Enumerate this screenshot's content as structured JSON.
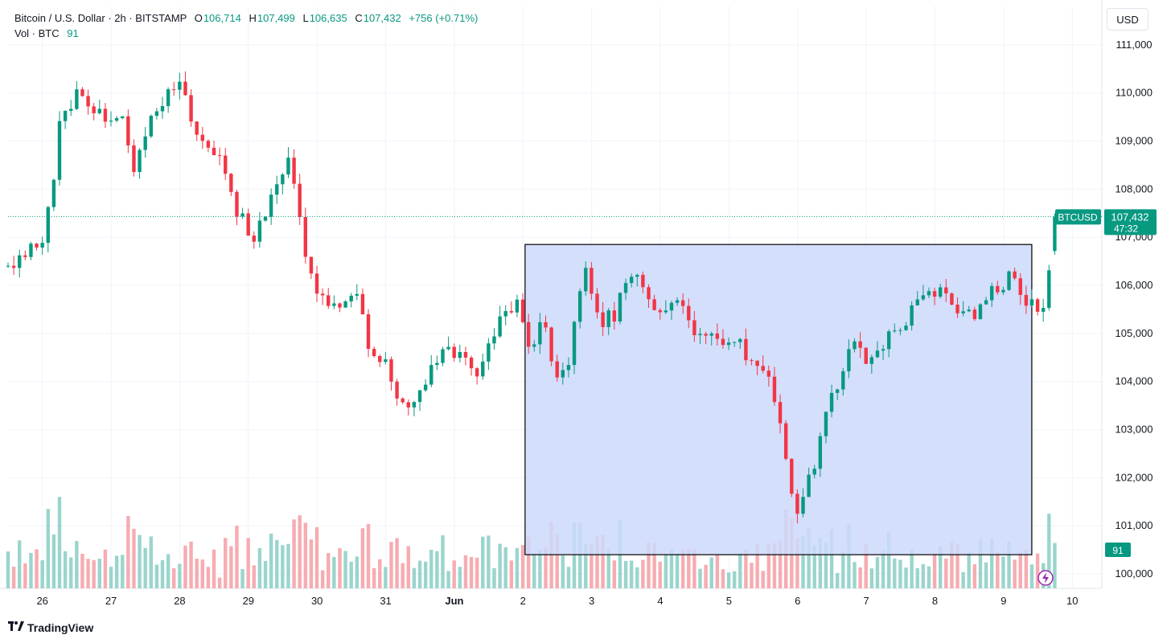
{
  "legend": {
    "symbol": "Bitcoin / U.S. Dollar · 2h · BITSTAMP",
    "open_label": "O",
    "open_value": "106,714",
    "high_label": "H",
    "high_value": "107,499",
    "low_label": "L",
    "low_value": "106,635",
    "close_label": "C",
    "close_value": "107,432",
    "change": "+756 (+0.71%)",
    "vol_label": "Vol · BTC",
    "vol_value": "91"
  },
  "currency_button": "USD",
  "branding": {
    "name": "TradingView",
    "icon": "tradingview-logo-icon"
  },
  "price_tag": {
    "symbol": "BTCUSD",
    "price": "107,432",
    "countdown": "47:32"
  },
  "volume_tag": "91",
  "alert_icon": "lightning-icon",
  "colors": {
    "up": "#089981",
    "down": "#f23645",
    "up_volume": "#8fd0c8",
    "down_volume": "#f5a3a9",
    "rectangle_fill": "#cdd9fb",
    "rectangle_border": "#000000",
    "grid": "#f0f3fa"
  },
  "chart_data": {
    "type": "candlestick",
    "title": "Bitcoin / U.S. Dollar · 2h · BITSTAMP",
    "ylim": [
      99700,
      111800
    ],
    "yticks": [
      "111,000",
      "110,000",
      "109,000",
      "108,000",
      "107,000",
      "106,000",
      "105,000",
      "104,000",
      "103,000",
      "102,000",
      "101,000",
      "100,000"
    ],
    "ytick_values": [
      111000,
      110000,
      109000,
      108000,
      107000,
      106000,
      105000,
      104000,
      103000,
      102000,
      101000,
      100000
    ],
    "xticks": [
      {
        "label": "26",
        "t": 0.5
      },
      {
        "label": "27",
        "t": 1.5
      },
      {
        "label": "28",
        "t": 2.5
      },
      {
        "label": "29",
        "t": 3.5
      },
      {
        "label": "30",
        "t": 4.5
      },
      {
        "label": "31",
        "t": 5.5
      },
      {
        "label": "Jun",
        "t": 6.5
      },
      {
        "label": "2",
        "t": 7.5
      },
      {
        "label": "3",
        "t": 8.5
      },
      {
        "label": "4",
        "t": 9.5
      },
      {
        "label": "5",
        "t": 10.5
      },
      {
        "label": "6",
        "t": 11.5
      },
      {
        "label": "7",
        "t": 12.5
      },
      {
        "label": "8",
        "t": 13.5
      },
      {
        "label": "9",
        "t": 14.5
      },
      {
        "label": "10",
        "t": 15.5
      }
    ],
    "xlim": [
      0.0,
      15.93
    ],
    "bar_spacing_days": 0.0833,
    "anchors": [
      {
        "t": 0.0,
        "p": 106400
      },
      {
        "t": 0.25,
        "p": 106600
      },
      {
        "t": 0.55,
        "p": 107100
      },
      {
        "t": 0.75,
        "p": 109300
      },
      {
        "t": 1.0,
        "p": 110000
      },
      {
        "t": 1.2,
        "p": 109800
      },
      {
        "t": 1.45,
        "p": 109500
      },
      {
        "t": 1.65,
        "p": 109700
      },
      {
        "t": 1.85,
        "p": 108300
      },
      {
        "t": 2.1,
        "p": 109600
      },
      {
        "t": 2.5,
        "p": 110100
      },
      {
        "t": 2.8,
        "p": 109000
      },
      {
        "t": 3.1,
        "p": 108800
      },
      {
        "t": 3.35,
        "p": 107500
      },
      {
        "t": 3.6,
        "p": 106900
      },
      {
        "t": 3.8,
        "p": 107800
      },
      {
        "t": 4.1,
        "p": 108700
      },
      {
        "t": 4.35,
        "p": 106300
      },
      {
        "t": 4.55,
        "p": 105800
      },
      {
        "t": 4.75,
        "p": 105600
      },
      {
        "t": 5.05,
        "p": 106000
      },
      {
        "t": 5.25,
        "p": 104800
      },
      {
        "t": 5.5,
        "p": 104300
      },
      {
        "t": 5.75,
        "p": 103500
      },
      {
        "t": 5.95,
        "p": 103600
      },
      {
        "t": 6.15,
        "p": 104300
      },
      {
        "t": 6.35,
        "p": 104800
      },
      {
        "t": 6.55,
        "p": 104500
      },
      {
        "t": 6.85,
        "p": 104200
      },
      {
        "t": 7.1,
        "p": 105000
      },
      {
        "t": 7.4,
        "p": 105800
      },
      {
        "t": 7.6,
        "p": 104800
      },
      {
        "t": 7.8,
        "p": 105200
      },
      {
        "t": 8.0,
        "p": 104000
      },
      {
        "t": 8.2,
        "p": 104600
      },
      {
        "t": 8.38,
        "p": 106400
      },
      {
        "t": 8.55,
        "p": 105300
      },
      {
        "t": 8.8,
        "p": 105300
      },
      {
        "t": 9.05,
        "p": 106400
      },
      {
        "t": 9.25,
        "p": 105800
      },
      {
        "t": 9.5,
        "p": 105500
      },
      {
        "t": 9.75,
        "p": 105600
      },
      {
        "t": 10.0,
        "p": 105000
      },
      {
        "t": 10.3,
        "p": 105000
      },
      {
        "t": 10.6,
        "p": 104800
      },
      {
        "t": 10.85,
        "p": 104400
      },
      {
        "t": 11.05,
        "p": 104300
      },
      {
        "t": 11.25,
        "p": 103000
      },
      {
        "t": 11.45,
        "p": 101300
      },
      {
        "t": 11.7,
        "p": 102000
      },
      {
        "t": 11.95,
        "p": 103500
      },
      {
        "t": 12.3,
        "p": 104800
      },
      {
        "t": 12.55,
        "p": 104300
      },
      {
        "t": 12.8,
        "p": 105000
      },
      {
        "t": 13.0,
        "p": 104900
      },
      {
        "t": 13.25,
        "p": 105800
      },
      {
        "t": 13.55,
        "p": 105800
      },
      {
        "t": 13.85,
        "p": 105500
      },
      {
        "t": 14.1,
        "p": 105300
      },
      {
        "t": 14.3,
        "p": 105800
      },
      {
        "t": 14.6,
        "p": 106200
      },
      {
        "t": 14.8,
        "p": 105600
      },
      {
        "t": 15.05,
        "p": 105500
      },
      {
        "t": 15.2,
        "p": 106500
      },
      {
        "t": 15.3,
        "p": 107432
      }
    ],
    "candles_note": "2h OHLC candles interpolated from anchors; last candle O 106,714 H 107,499 L 106,635 C 107,432",
    "volume": {
      "label": "Vol · BTC",
      "last": 91,
      "typical_range": [
        15,
        180
      ],
      "max": 250
    },
    "last_price": 107432,
    "rectangle": {
      "t_start": 7.53,
      "t_end": 14.91,
      "price_top": 106850,
      "price_bottom": 100400
    }
  }
}
